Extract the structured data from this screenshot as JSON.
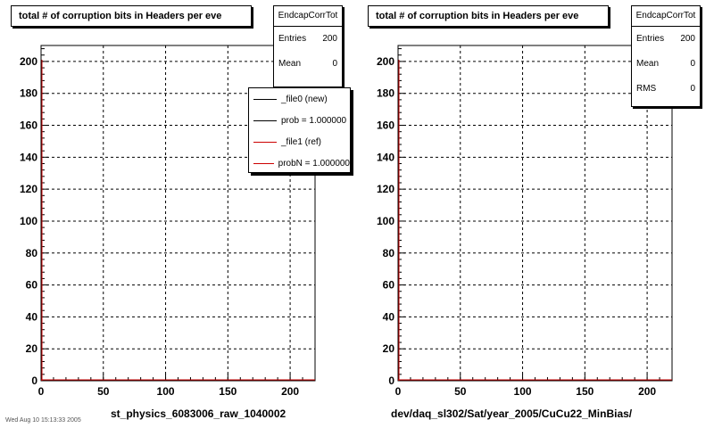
{
  "chart_data": [
    {
      "type": "bar",
      "title": "total # of corruption bits in Headers per eve",
      "xlabel": "st_physics_6083006_raw_1040002",
      "ylabel": "",
      "xlim": [
        0,
        220
      ],
      "ylim": [
        0,
        210
      ],
      "xticks": [
        0,
        50,
        100,
        150,
        200
      ],
      "yticks": [
        0,
        20,
        40,
        60,
        80,
        100,
        120,
        140,
        160,
        180,
        200
      ],
      "grid": true,
      "series": [
        {
          "name": "_file0 (new)",
          "color": "#000000",
          "values": []
        },
        {
          "name": "_file1 (ref)",
          "color": "#cc0000",
          "values": []
        }
      ],
      "stats": {
        "name": "EndcapCorrTot",
        "entries_label": "Entries",
        "entries": "200",
        "mean_label": "Mean",
        "mean": "0"
      },
      "legend": [
        {
          "label": "_file0 (new)",
          "color": "#000000"
        },
        {
          "label": "prob = 1.000000",
          "color": "#000000"
        },
        {
          "label": "_file1 (ref)",
          "color": "#cc0000"
        },
        {
          "label": "probN = 1.000000",
          "color": "#cc0000"
        }
      ]
    },
    {
      "type": "bar",
      "title": "total # of corruption bits in Headers per eve",
      "xlabel": "dev/daq_sl302/Sat/year_2005/CuCu22_MinBias/",
      "ylabel": "",
      "xlim": [
        0,
        220
      ],
      "ylim": [
        0,
        210
      ],
      "xticks": [
        0,
        50,
        100,
        150,
        200
      ],
      "yticks": [
        0,
        20,
        40,
        60,
        80,
        100,
        120,
        140,
        160,
        180,
        200
      ],
      "grid": true,
      "series": [
        {
          "name": "_file1 (ref)",
          "color": "#cc0000",
          "values": []
        }
      ],
      "stats": {
        "name": "EndcapCorrTot",
        "entries_label": "Entries",
        "entries": "200",
        "mean_label": "Mean",
        "mean": "0",
        "rms_label": "RMS",
        "rms": "0"
      }
    }
  ],
  "footer_text": "Wed Aug 10 15:13:33 2005",
  "colors": {
    "frame": "#000000",
    "grid": "#000000",
    "ref_line": "#cc0000"
  }
}
